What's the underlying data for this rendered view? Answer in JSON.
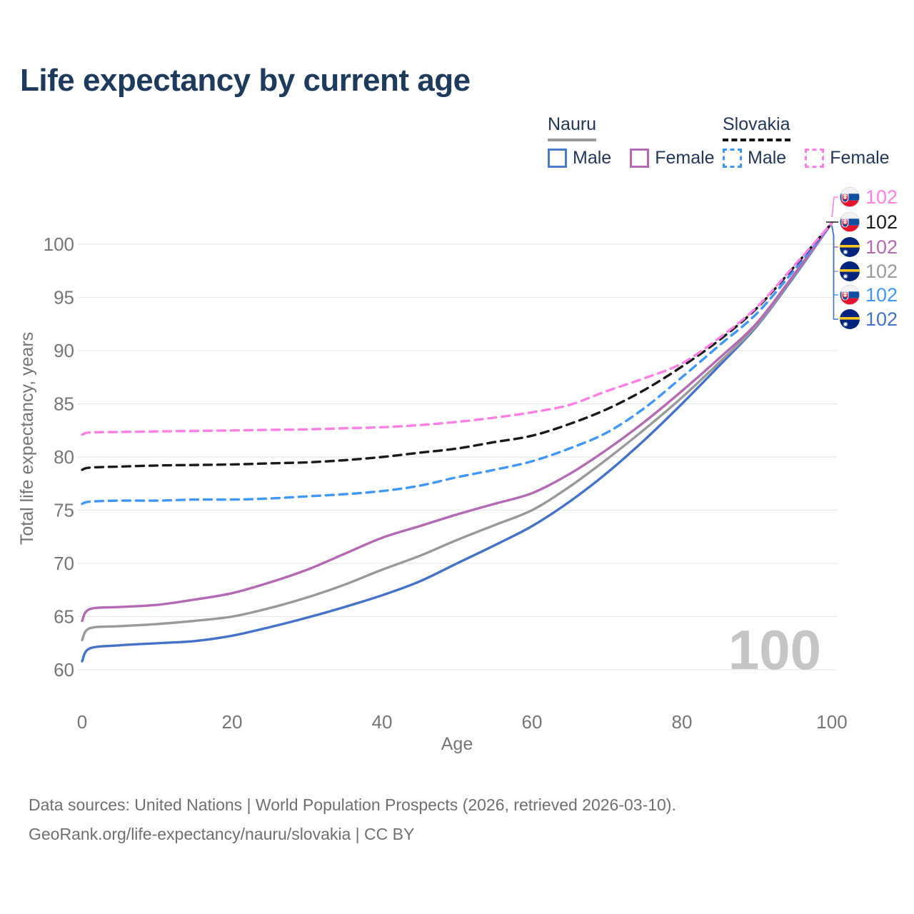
{
  "title": "Life expectancy by current age",
  "legend": {
    "nauru": {
      "label": "Nauru",
      "male": "Male",
      "female": "Female"
    },
    "slovakia": {
      "label": "Slovakia",
      "male": "Male",
      "female": "Female"
    }
  },
  "watermark": "100",
  "footer": {
    "line1": "Data sources: United Nations | World Population Prospects (2026, retrieved 2026-03-10).",
    "line2": "GeoRank.org/life-expectancy/nauru/slovakia | CC BY"
  },
  "colors": {
    "title_text": "#1e3a5c",
    "axis_text": "#757575",
    "gridline": "#e7e7e7",
    "nauru_male": "#4472c8",
    "nauru_both": "#999999",
    "nauru_female": "#b369b3",
    "slovakia_male": "#3f97fb",
    "slovakia_both": "#1a1a1a",
    "slovakia_female": "#ff7fe3"
  },
  "chart_data": {
    "type": "line",
    "title": "Life expectancy by current age",
    "xlabel": "Age",
    "ylabel": "Total life expectancy, years",
    "xlim": [
      0,
      100
    ],
    "ylim": [
      60,
      100
    ],
    "x_ticks": [
      0,
      20,
      40,
      60,
      80,
      100
    ],
    "y_ticks": [
      60,
      65,
      70,
      75,
      80,
      85,
      90,
      95,
      100
    ],
    "grid": "horizontal",
    "legend_position": "top-right",
    "current_age_frame": "100",
    "x": [
      0,
      1,
      5,
      10,
      15,
      20,
      25,
      30,
      35,
      40,
      45,
      50,
      55,
      60,
      65,
      70,
      75,
      80,
      85,
      90,
      95,
      100
    ],
    "series": [
      {
        "id": "nauru_male",
        "name": "Nauru Male",
        "country": "Nauru",
        "sex": "male",
        "style": "solid",
        "color": "#4472c8",
        "values": [
          60.8,
          62.0,
          62.3,
          62.5,
          62.7,
          63.2,
          64.0,
          64.9,
          65.9,
          67.0,
          68.3,
          70.0,
          71.7,
          73.5,
          75.8,
          78.5,
          81.6,
          85.0,
          88.6,
          92.3,
          97.0,
          102
        ]
      },
      {
        "id": "nauru_both",
        "name": "Nauru (both sexes)",
        "country": "Nauru",
        "sex": "both",
        "style": "solid",
        "color": "#999999",
        "values": [
          62.8,
          63.9,
          64.1,
          64.3,
          64.6,
          65.0,
          65.8,
          66.8,
          68.0,
          69.4,
          70.7,
          72.2,
          73.6,
          75.0,
          77.2,
          79.8,
          82.6,
          85.6,
          88.9,
          92.4,
          97.1,
          102
        ]
      },
      {
        "id": "nauru_female",
        "name": "Nauru Female",
        "country": "Nauru",
        "sex": "female",
        "style": "solid",
        "color": "#b369b3",
        "values": [
          64.6,
          65.7,
          65.9,
          66.1,
          66.6,
          67.2,
          68.2,
          69.4,
          70.9,
          72.4,
          73.5,
          74.6,
          75.6,
          76.6,
          78.4,
          80.7,
          83.3,
          86.2,
          89.3,
          92.6,
          97.2,
          102
        ]
      },
      {
        "id": "slovakia_male",
        "name": "Slovakia Male",
        "country": "Slovakia",
        "sex": "male",
        "style": "dashed",
        "color": "#3f97fb",
        "values": [
          75.6,
          75.8,
          75.9,
          75.9,
          76.0,
          76.0,
          76.1,
          76.3,
          76.5,
          76.8,
          77.3,
          78.1,
          78.8,
          79.6,
          80.8,
          82.3,
          84.6,
          87.5,
          90.5,
          93.5,
          97.6,
          102
        ]
      },
      {
        "id": "slovakia_both",
        "name": "Slovakia (both sexes)",
        "country": "Slovakia",
        "sex": "both",
        "style": "dashed",
        "color": "#1a1a1a",
        "values": [
          78.8,
          79.0,
          79.1,
          79.2,
          79.25,
          79.3,
          79.4,
          79.5,
          79.7,
          80.0,
          80.4,
          80.8,
          81.4,
          82.0,
          83.1,
          84.5,
          86.3,
          88.5,
          91.0,
          94.0,
          97.9,
          102
        ]
      },
      {
        "id": "slovakia_female",
        "name": "Slovakia Female",
        "country": "Slovakia",
        "sex": "female",
        "style": "dashed",
        "color": "#ff7fe3",
        "values": [
          82.1,
          82.3,
          82.35,
          82.4,
          82.45,
          82.5,
          82.55,
          82.6,
          82.7,
          82.8,
          83.0,
          83.3,
          83.7,
          84.2,
          84.9,
          86.2,
          87.4,
          88.8,
          91.2,
          94.1,
          98.0,
          102
        ]
      }
    ],
    "endpoint_labels": [
      {
        "series": "slovakia_female",
        "flag": "slovakia",
        "value": "102",
        "color": "#ff7fe3"
      },
      {
        "series": "slovakia_both",
        "flag": "slovakia",
        "value": "102",
        "color": "#1a1a1a"
      },
      {
        "series": "nauru_female",
        "flag": "nauru",
        "value": "102",
        "color": "#b369b3"
      },
      {
        "series": "nauru_both",
        "flag": "nauru",
        "value": "102",
        "color": "#999999"
      },
      {
        "series": "slovakia_male",
        "flag": "slovakia",
        "value": "102",
        "color": "#3f97fb"
      },
      {
        "series": "nauru_male",
        "flag": "nauru",
        "value": "102",
        "color": "#4472c8"
      }
    ]
  }
}
